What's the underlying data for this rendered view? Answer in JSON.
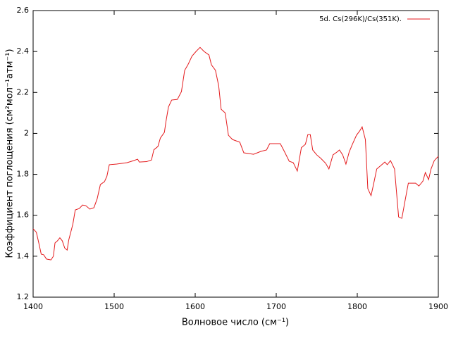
{
  "chart_data": {
    "type": "line",
    "xlabel": "Волновое число (см⁻¹)",
    "ylabel": "Коэффициент поглощения (см²мол⁻¹атм⁻¹)",
    "xlim": [
      1400,
      1900
    ],
    "ylim": [
      1.2,
      2.6
    ],
    "xticks": [
      1400,
      1500,
      1600,
      1700,
      1800,
      1900
    ],
    "yticks": [
      1.2,
      1.4,
      1.6,
      1.8,
      2,
      2.2,
      2.4,
      2.6
    ],
    "legend": "upper right",
    "x": [
      1400,
      1404,
      1407,
      1410,
      1413,
      1416.5,
      1422,
      1425,
      1427,
      1430,
      1433,
      1436,
      1439,
      1442,
      1444,
      1449,
      1452,
      1457,
      1461,
      1465,
      1470,
      1475,
      1479,
      1483,
      1488,
      1491,
      1494,
      1503,
      1516,
      1524,
      1529,
      1531,
      1540,
      1546,
      1549,
      1554,
      1557,
      1562,
      1564,
      1567,
      1571,
      1578,
      1583,
      1587,
      1591,
      1596,
      1601,
      1606,
      1611,
      1617,
      1620,
      1625,
      1629,
      1632,
      1637,
      1641,
      1646,
      1655,
      1660,
      1672,
      1681,
      1688,
      1692,
      1705,
      1710,
      1716,
      1721,
      1726,
      1731,
      1736,
      1739,
      1742,
      1745,
      1750,
      1755,
      1761,
      1765,
      1770,
      1775,
      1778,
      1782,
      1786,
      1790,
      1794,
      1799,
      1803,
      1806,
      1810,
      1813,
      1817,
      1820,
      1824,
      1829,
      1834,
      1837,
      1841,
      1846,
      1851,
      1855,
      1859,
      1863,
      1872,
      1876,
      1881,
      1884,
      1888,
      1891,
      1895,
      1900
    ],
    "series": [
      {
        "name": "5d. Cs(296K)/Cs(351K).",
        "color": "#e41a1c",
        "values": [
          1.534,
          1.517,
          1.465,
          1.41,
          1.407,
          1.386,
          1.382,
          1.4,
          1.465,
          1.475,
          1.49,
          1.475,
          1.44,
          1.43,
          1.48,
          1.556,
          1.626,
          1.633,
          1.65,
          1.647,
          1.63,
          1.637,
          1.68,
          1.75,
          1.764,
          1.79,
          1.847,
          1.85,
          1.857,
          1.867,
          1.874,
          1.86,
          1.862,
          1.87,
          1.92,
          1.936,
          1.977,
          2.005,
          2.06,
          2.129,
          2.163,
          2.166,
          2.204,
          2.308,
          2.335,
          2.377,
          2.4,
          2.42,
          2.4,
          2.383,
          2.335,
          2.308,
          2.232,
          2.118,
          2.1,
          1.991,
          1.97,
          1.957,
          1.905,
          1.898,
          1.912,
          1.919,
          1.95,
          1.95,
          1.912,
          1.864,
          1.857,
          1.816,
          1.93,
          1.947,
          1.994,
          1.994,
          1.919,
          1.895,
          1.878,
          1.854,
          1.826,
          1.895,
          1.909,
          1.919,
          1.895,
          1.85,
          1.909,
          1.947,
          1.991,
          2.012,
          2.032,
          1.97,
          1.73,
          1.696,
          1.75,
          1.826,
          1.843,
          1.86,
          1.847,
          1.867,
          1.826,
          1.592,
          1.585,
          1.672,
          1.757,
          1.757,
          1.743,
          1.767,
          1.809,
          1.774,
          1.826,
          1.867,
          1.888
        ]
      }
    ]
  }
}
